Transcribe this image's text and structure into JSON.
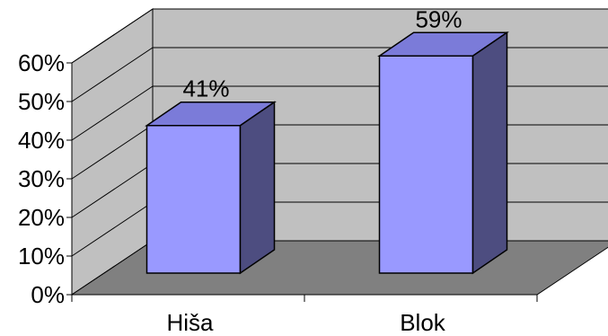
{
  "chart_data": {
    "type": "bar",
    "style": "3d-column",
    "categories": [
      "Hiša",
      "Blok"
    ],
    "values": [
      41,
      59
    ],
    "data_labels": [
      "41%",
      "59%"
    ],
    "yticks": [
      "0%",
      "10%",
      "20%",
      "30%",
      "40%",
      "50%",
      "60%"
    ],
    "ylim": [
      0,
      60
    ],
    "grid": true,
    "legend": "none",
    "colors": {
      "bar_front": "#9999ff",
      "bar_top": "#7b7bd9",
      "bar_side": "#4d4d80",
      "wall": "#c0c0c0",
      "floor": "#808080",
      "outline": "#000000"
    }
  }
}
